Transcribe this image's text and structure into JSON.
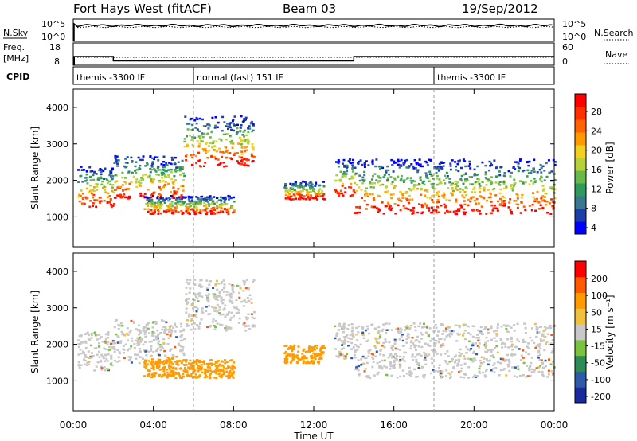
{
  "header": {
    "title": "Fort Hays West (fitACF)",
    "beam": "Beam 03",
    "date": "19/Sep/2012"
  },
  "strip": {
    "nsky_label": "N.Sky",
    "nsky_ticks": [
      "10^5",
      "10^0"
    ],
    "nsearch_ticks": [
      "10^5",
      "10^0"
    ],
    "nsearch_label": "N.Search",
    "freq_label": "Freq.",
    "freq_unit": "[MHz]",
    "freq_ticks": [
      "18",
      "8"
    ],
    "nave_ticks": [
      "60",
      "0"
    ],
    "nave_label": "Nave",
    "cpid_label": "CPID",
    "cpid_segments": [
      {
        "label": "themis -3300 IF",
        "start": 0,
        "end": 6
      },
      {
        "label": "normal (fast) 151 IF",
        "start": 6,
        "end": 18
      },
      {
        "label": "themis -3300 IF",
        "start": 18,
        "end": 24
      }
    ]
  },
  "chart_data": [
    {
      "type": "heatmap",
      "panel": "power",
      "ylabel": "Slant Range [km]",
      "ylim": [
        180,
        4500
      ],
      "yticks": [
        "1000",
        "2000",
        "3000",
        "4000"
      ],
      "colorbar_label": "Power [dB]",
      "colorbar_ticks": [
        "28",
        "24",
        "20",
        "16",
        "12",
        "8",
        "4"
      ],
      "colorbar_colors": [
        "#0000ff",
        "#1c3ea8",
        "#3a7890",
        "#2f9a5c",
        "#69b84a",
        "#b6d13c",
        "#f0d020",
        "#ff9a00",
        "#ff6400",
        "#ff3000",
        "#ff0000"
      ],
      "echo_bands": [
        {
          "t_start": 0.2,
          "t_end": 2.0,
          "r_low": 1300,
          "r_high": 2400
        },
        {
          "t_start": 2.0,
          "t_end": 5.5,
          "r_low": 1500,
          "r_high": 2700
        },
        {
          "t_start": 5.5,
          "t_end": 9.0,
          "r_low": 2400,
          "r_high": 3800
        },
        {
          "t_start": 3.5,
          "t_end": 8.0,
          "r_low": 1100,
          "r_high": 1600
        },
        {
          "t_start": 10.5,
          "t_end": 12.5,
          "r_low": 1500,
          "r_high": 2000
        },
        {
          "t_start": 13.0,
          "t_end": 14.0,
          "r_low": 1600,
          "r_high": 2600
        },
        {
          "t_start": 14.0,
          "t_end": 24.0,
          "r_low": 1100,
          "r_high": 2600
        }
      ]
    },
    {
      "type": "heatmap",
      "panel": "velocity",
      "ylabel": "Slant Range [km]",
      "ylim": [
        180,
        4500
      ],
      "yticks": [
        "1000",
        "2000",
        "3000",
        "4000"
      ],
      "colorbar_label": "Velocity [m s⁻¹]",
      "colorbar_ticks": [
        "200",
        "100",
        "50",
        "15",
        "-15",
        "-50",
        "-100",
        "-200"
      ],
      "colorbar_colors": [
        "#1a2a9c",
        "#2f5aa8",
        "#2e8b57",
        "#7cc242",
        "#c8c8c8",
        "#f0c040",
        "#ff9a00",
        "#ff5a00",
        "#ff0000"
      ],
      "xlabel": "Time UT",
      "xticks": [
        "00:00",
        "04:00",
        "08:00",
        "12:00",
        "16:00",
        "20:00",
        "00:00"
      ],
      "xlim": [
        0,
        24
      ]
    }
  ]
}
